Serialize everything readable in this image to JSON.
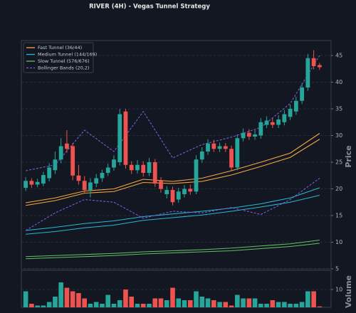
{
  "chart_data": {
    "type": "candlestick",
    "title": "RIVER (4H) - Vegas Tunnel Strategy",
    "y_label": "Price",
    "volume_label": "Volume",
    "up_color": "#26a69a",
    "down_color": "#ef5350",
    "grid": true,
    "legend_position": "upper left",
    "ylim": [
      5,
      47.8
    ],
    "yticks": [
      5,
      10,
      15,
      20,
      25,
      30,
      35,
      40,
      45
    ],
    "volume_ylim": [
      0,
      20.8
    ],
    "volume_yticks": [
      10
    ],
    "open": [
      20.2,
      21.5,
      20.8,
      21.0,
      22.0,
      23.5,
      25.5,
      28.5,
      28.0,
      22.5,
      21.5,
      19.8,
      21.0,
      22.0,
      23.0,
      24.0,
      25.0,
      34.5,
      24.5,
      23.5,
      24.5,
      23.0,
      25.0,
      21.5,
      19.0,
      19.8,
      18.0,
      19.0,
      20.0,
      19.5,
      25.5,
      27.0,
      28.5,
      27.5,
      28.0,
      27.5,
      24.0,
      29.5,
      30.5,
      29.8,
      30.0,
      32.0,
      32.5,
      32.0,
      32.5,
      33.5,
      34.5,
      36.5,
      39.0,
      44.5,
      43.2
    ],
    "high": [
      22.2,
      22.0,
      21.9,
      23.2,
      24.8,
      27.0,
      29.5,
      31.0,
      28.6,
      24.5,
      22.4,
      22.0,
      22.8,
      23.6,
      24.7,
      26.3,
      35.0,
      35.0,
      25.2,
      25.4,
      25.2,
      25.8,
      25.6,
      22.2,
      20.5,
      20.4,
      20.2,
      20.7,
      20.8,
      26.3,
      27.8,
      29.3,
      29.2,
      28.7,
      28.6,
      28.1,
      30.2,
      31.3,
      31.2,
      31.0,
      33.3,
      33.6,
      33.2,
      33.8,
      34.8,
      35.8,
      37.3,
      39.8,
      45.3,
      46.0,
      43.6
    ],
    "low": [
      19.6,
      20.2,
      20.3,
      20.5,
      21.4,
      22.8,
      24.8,
      26.8,
      21.6,
      20.8,
      19.2,
      18.4,
      20.3,
      21.3,
      22.4,
      23.4,
      24.4,
      23.8,
      22.8,
      22.9,
      22.3,
      22.4,
      20.4,
      19.3,
      18.2,
      16.9,
      17.4,
      18.4,
      18.9,
      19.0,
      24.9,
      26.4,
      26.9,
      26.9,
      26.9,
      23.4,
      23.5,
      28.9,
      29.2,
      29.2,
      29.4,
      31.4,
      31.4,
      31.4,
      31.9,
      32.9,
      33.9,
      35.9,
      38.4,
      42.4,
      42.3
    ],
    "close": [
      21.5,
      20.8,
      21.3,
      22.6,
      24.0,
      25.5,
      28.0,
      27.5,
      22.5,
      21.5,
      19.8,
      21.2,
      22.0,
      23.0,
      24.0,
      25.5,
      34.0,
      24.5,
      23.5,
      24.5,
      23.0,
      25.0,
      21.0,
      20.0,
      19.8,
      17.5,
      19.5,
      20.0,
      19.5,
      25.5,
      27.0,
      28.5,
      27.5,
      28.0,
      27.5,
      24.0,
      29.5,
      30.5,
      29.8,
      30.2,
      32.5,
      32.8,
      32.0,
      33.0,
      34.0,
      35.0,
      36.5,
      39.0,
      44.5,
      43.0,
      42.8
    ],
    "volume": [
      9,
      2,
      1,
      1,
      3,
      6,
      14,
      11,
      9,
      8,
      5,
      2,
      3,
      2,
      7,
      2,
      4,
      10,
      6,
      2,
      2,
      2,
      5,
      5,
      4,
      11,
      5,
      4,
      4,
      9,
      6,
      5,
      4,
      3,
      3,
      1,
      7,
      5,
      5,
      5,
      2,
      2,
      4,
      3,
      3,
      2,
      2,
      3,
      9,
      9,
      0.5
    ],
    "series": [
      {
        "name": "Fast Tunnel (36/44)",
        "color": "#f5a742",
        "dashed": false,
        "lines": [
          {
            "x": [
              0,
              5,
              10,
              15,
              20,
              25,
              30,
              35,
              40,
              45,
              50
            ],
            "values": [
              17.4,
              18.3,
              19.6,
              20.0,
              21.8,
              21.4,
              22.0,
              23.4,
              25.0,
              26.7,
              30.4
            ]
          },
          {
            "x": [
              0,
              5,
              10,
              15,
              20,
              25,
              30,
              35,
              40,
              45,
              50
            ],
            "values": [
              16.9,
              17.8,
              19.2,
              19.5,
              21.2,
              21.0,
              21.4,
              22.6,
              24.2,
              25.9,
              29.3
            ]
          }
        ]
      },
      {
        "name": "Medium Tunnel (144/169)",
        "color": "#29b6d6",
        "dashed": false,
        "lines": [
          {
            "x": [
              0,
              5,
              10,
              15,
              20,
              25,
              30,
              35,
              40,
              45,
              50
            ],
            "values": [
              12.2,
              12.8,
              13.5,
              14.0,
              14.8,
              15.3,
              15.8,
              16.4,
              17.2,
              18.3,
              20.2
            ]
          },
          {
            "x": [
              0,
              5,
              10,
              15,
              20,
              25,
              30,
              35,
              40,
              45,
              50
            ],
            "values": [
              11.5,
              12.0,
              12.7,
              13.2,
              14.1,
              14.6,
              15.1,
              15.8,
              16.6,
              17.5,
              18.8
            ]
          }
        ]
      },
      {
        "name": "Slow Tunnel (576/676)",
        "color": "#66bb6a",
        "dashed": false,
        "lines": [
          {
            "x": [
              0,
              5,
              10,
              15,
              20,
              25,
              30,
              35,
              40,
              45,
              50
            ],
            "values": [
              7.3,
              7.5,
              7.7,
              7.9,
              8.2,
              8.4,
              8.6,
              8.9,
              9.3,
              9.7,
              10.4
            ]
          },
          {
            "x": [
              0,
              5,
              10,
              15,
              20,
              25,
              30,
              35,
              40,
              45,
              50
            ],
            "values": [
              6.9,
              7.1,
              7.3,
              7.5,
              7.8,
              8.0,
              8.2,
              8.4,
              8.8,
              9.2,
              9.8
            ]
          }
        ]
      },
      {
        "name": "Bollinger Bands (20,2)",
        "color": "#7b5cd6",
        "dashed": true,
        "lines": [
          {
            "x": [
              0,
              5,
              10,
              15,
              20,
              25,
              30,
              35,
              40,
              45,
              50
            ],
            "values": [
              23.4,
              24.5,
              31.0,
              27.0,
              34.5,
              25.8,
              28.3,
              29.7,
              31.5,
              36.0,
              45.0
            ]
          },
          {
            "x": [
              0,
              5,
              10,
              15,
              20,
              25,
              30,
              35,
              40,
              45,
              50
            ],
            "values": [
              12.2,
              15.5,
              18.0,
              17.5,
              14.5,
              15.8,
              15.5,
              16.5,
              15.2,
              18.0,
              22.0
            ]
          }
        ]
      }
    ]
  }
}
